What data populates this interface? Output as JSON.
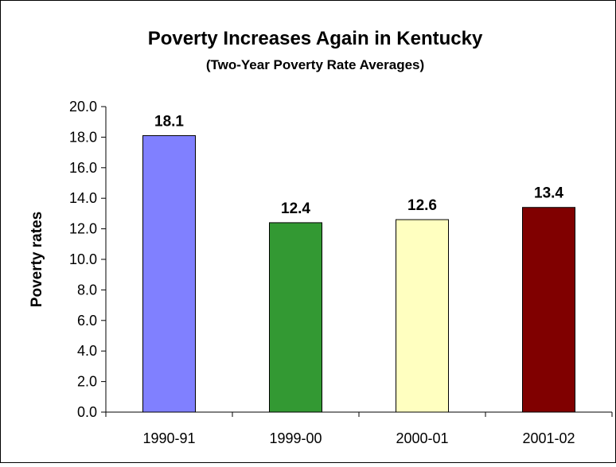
{
  "chart_data": {
    "type": "bar",
    "title": "Poverty Increases Again in Kentucky",
    "subtitle": "(Two-Year Poverty Rate Averages)",
    "xlabel": "",
    "ylabel": "Poverty rates",
    "categories": [
      "1990-91",
      "1999-00",
      "2000-01",
      "2001-02"
    ],
    "values": [
      18.1,
      12.4,
      12.6,
      13.4
    ],
    "data_labels": [
      "18.1",
      "12.4",
      "12.6",
      "13.4"
    ],
    "bar_colors": [
      "#8080FF",
      "#339933",
      "#FFFFC0",
      "#800000"
    ],
    "ylim": [
      0,
      20
    ],
    "yticks": [
      0,
      2,
      4,
      6,
      8,
      10,
      12,
      14,
      16,
      18,
      20
    ],
    "ytick_labels": [
      "0.0",
      "2.0",
      "4.0",
      "6.0",
      "8.0",
      "10.0",
      "12.0",
      "14.0",
      "16.0",
      "18.0",
      "20.0"
    ],
    "grid": false,
    "legend": "none"
  }
}
